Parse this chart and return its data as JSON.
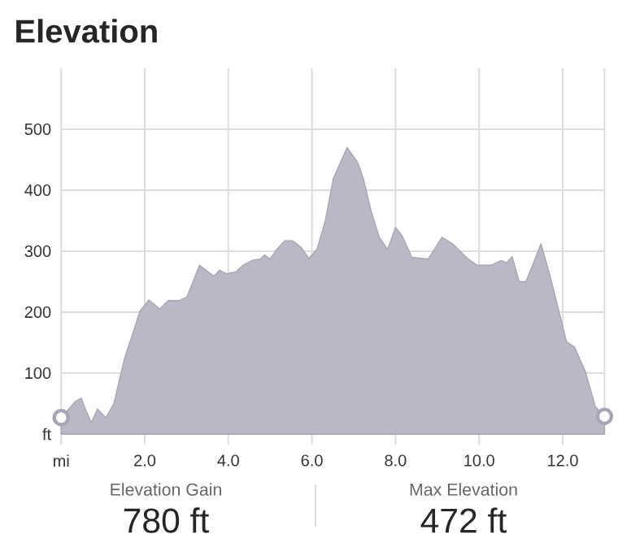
{
  "chart_data": {
    "type": "area",
    "title": "Elevation",
    "xlim": [
      0,
      13
    ],
    "ylim": [
      0,
      600
    ],
    "xticks": [
      {
        "value": 0,
        "label": "mi"
      },
      {
        "value": 2,
        "label": "2.0"
      },
      {
        "value": 4,
        "label": "4.0"
      },
      {
        "value": 6,
        "label": "6.0"
      },
      {
        "value": 8,
        "label": "8.0"
      },
      {
        "value": 10,
        "label": "10.0"
      },
      {
        "value": 12,
        "label": "12.0"
      }
    ],
    "yticks": [
      {
        "value": 0,
        "label": "ft"
      },
      100,
      200,
      300,
      400,
      500
    ],
    "grid": true,
    "series": [
      {
        "color": "#b9b8c6",
        "x": [
          0,
          0.35,
          0.48,
          0.61,
          0.72,
          0.87,
          1.07,
          1.26,
          1.52,
          1.78,
          1.88,
          2.1,
          2.36,
          2.56,
          2.82,
          3.01,
          3.31,
          3.46,
          3.66,
          3.79,
          3.96,
          4.18,
          4.35,
          4.57,
          4.76,
          4.87,
          5.0,
          5.16,
          5.35,
          5.54,
          5.73,
          5.93,
          6.12,
          6.32,
          6.51,
          6.84,
          7.1,
          7.23,
          7.42,
          7.61,
          7.81,
          8.0,
          8.16,
          8.39,
          8.78,
          9.11,
          9.37,
          9.69,
          9.95,
          10.28,
          10.53,
          10.66,
          10.79,
          10.96,
          11.12,
          11.48,
          11.7,
          12.09,
          12.28,
          12.54,
          12.78,
          13.0
        ],
        "values": [
          27,
          54,
          59,
          36,
          19,
          41,
          27,
          50,
          125,
          179,
          201,
          220,
          205,
          219,
          219,
          225,
          277,
          269,
          259,
          269,
          263,
          266,
          277,
          285,
          287,
          294,
          287,
          303,
          317,
          317,
          307,
          288,
          303,
          350,
          419,
          470,
          445,
          419,
          365,
          323,
          303,
          339,
          325,
          290,
          287,
          323,
          312,
          290,
          277,
          277,
          285,
          281,
          291,
          250,
          250,
          312,
          259,
          152,
          143,
          103,
          45,
          29
        ]
      },
      {
        "type": "scatter",
        "marker": "circle",
        "color": "#a6a5b5",
        "x": [
          0,
          13.0
        ],
        "values": [
          27,
          29
        ]
      }
    ],
    "annotations": [
      "Elevation Gain",
      "780 ft",
      "Max Elevation",
      "472 ft"
    ]
  }
}
